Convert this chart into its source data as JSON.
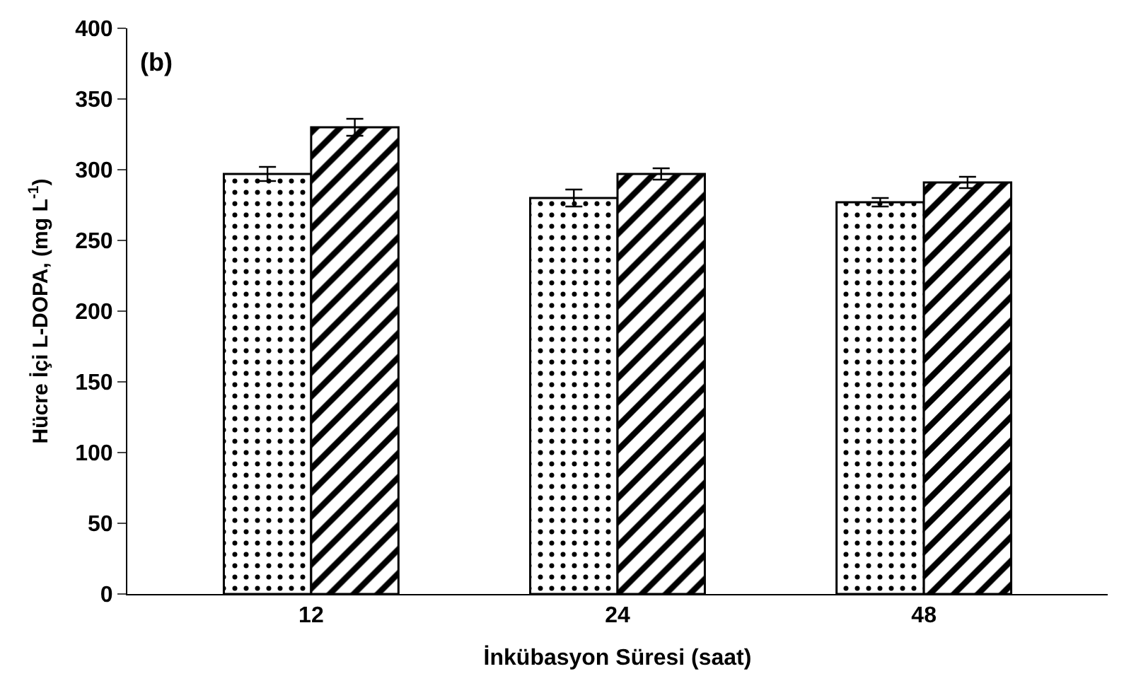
{
  "chart_data": {
    "type": "bar",
    "xlabel": "İnkübasyon Süresi (saat)",
    "ylabel": "Hücre İçi L-DOPA, (mg L$^{-1}$)",
    "annotations": [
      "(b)"
    ],
    "categories": [
      "12",
      "24",
      "48"
    ],
    "series": [
      {
        "color": "#000000",
        "values": [
          297,
          280,
          277
        ],
        "errors": [
          5,
          6,
          3
        ]
      },
      {
        "color": "#000000",
        "values": [
          330,
          297,
          291
        ],
        "errors": [
          6,
          4,
          4
        ]
      }
    ],
    "ylim": [
      0,
      400
    ],
    "yticks": [
      0,
      50,
      100,
      150,
      200,
      250,
      300,
      350,
      400
    ]
  }
}
